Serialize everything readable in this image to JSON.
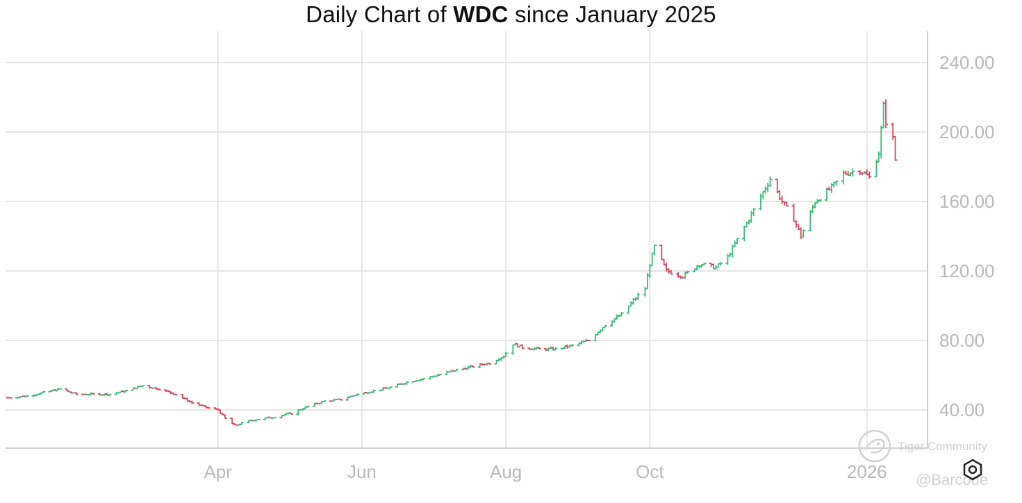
{
  "title": {
    "prefix": "Daily Chart of ",
    "symbol": "WDC",
    "suffix": " since January 2025"
  },
  "watermark": {
    "text": "Tiger Community",
    "handle": "@Barcode"
  },
  "colors": {
    "up": "#3cb878",
    "down": "#d6455a",
    "grid": "#e4e4e4",
    "axis": "#b8b8b8"
  },
  "icons": {
    "settings": "settings-gear-icon",
    "logo": "tiger-logo-icon"
  },
  "chart_data": {
    "type": "line",
    "style": "ohlc-bars",
    "title": "Daily Chart of WDC since January 2025",
    "xlabel": "",
    "ylabel": "",
    "ylim": [
      18,
      258
    ],
    "yticks": [
      "40.00",
      "80.00",
      "120.00",
      "160.00",
      "200.00",
      "240.00"
    ],
    "ytick_values": [
      40,
      80,
      120,
      160,
      200,
      240
    ],
    "xticks": [
      "Apr",
      "Jun",
      "Aug",
      "Oct",
      "2026"
    ],
    "xtick_dates": [
      "2025-04-01",
      "2025-06-01",
      "2025-08-01",
      "2025-10-01",
      "2026-01-01"
    ],
    "x_range": [
      "2025-01-01",
      "2026-01-14"
    ],
    "grid": true,
    "legend": "none",
    "y_axis_position": "right",
    "series": [
      {
        "values": [
          [
            "2025-01-02",
            47
          ],
          [
            "2025-01-10",
            48
          ],
          [
            "2025-01-17",
            50
          ],
          [
            "2025-01-24",
            52
          ],
          [
            "2025-01-31",
            49
          ],
          [
            "2025-02-07",
            49
          ],
          [
            "2025-02-14",
            49
          ],
          [
            "2025-02-21",
            51
          ],
          [
            "2025-02-28",
            54
          ],
          [
            "2025-03-07",
            52
          ],
          [
            "2025-03-14",
            49
          ],
          [
            "2025-03-21",
            44
          ],
          [
            "2025-03-28",
            41
          ],
          [
            "2025-04-01",
            40
          ],
          [
            "2025-04-04",
            35
          ],
          [
            "2025-04-08",
            31
          ],
          [
            "2025-04-15",
            34
          ],
          [
            "2025-04-25",
            36
          ],
          [
            "2025-05-02",
            38
          ],
          [
            "2025-05-09",
            42
          ],
          [
            "2025-05-16",
            45
          ],
          [
            "2025-05-23",
            46
          ],
          [
            "2025-05-30",
            49
          ],
          [
            "2025-06-06",
            51
          ],
          [
            "2025-06-13",
            53
          ],
          [
            "2025-06-20",
            56
          ],
          [
            "2025-06-27",
            58
          ],
          [
            "2025-07-03",
            60
          ],
          [
            "2025-07-11",
            63
          ],
          [
            "2025-07-18",
            65
          ],
          [
            "2025-07-25",
            67
          ],
          [
            "2025-07-31",
            71
          ],
          [
            "2025-08-04",
            78
          ],
          [
            "2025-08-08",
            76
          ],
          [
            "2025-08-15",
            75
          ],
          [
            "2025-08-22",
            75
          ],
          [
            "2025-08-29",
            77
          ],
          [
            "2025-09-05",
            80
          ],
          [
            "2025-09-12",
            89
          ],
          [
            "2025-09-19",
            95
          ],
          [
            "2025-09-24",
            103
          ],
          [
            "2025-09-29",
            110
          ],
          [
            "2025-10-01",
            124
          ],
          [
            "2025-10-03",
            134
          ],
          [
            "2025-10-08",
            120
          ],
          [
            "2025-10-15",
            117
          ],
          [
            "2025-10-22",
            124
          ],
          [
            "2025-10-29",
            122
          ],
          [
            "2025-11-03",
            128
          ],
          [
            "2025-11-07",
            138
          ],
          [
            "2025-11-12",
            150
          ],
          [
            "2025-11-17",
            163
          ],
          [
            "2025-11-21",
            173
          ],
          [
            "2025-11-26",
            160
          ],
          [
            "2025-12-01",
            150
          ],
          [
            "2025-12-04",
            140
          ],
          [
            "2025-12-10",
            160
          ],
          [
            "2025-12-17",
            168
          ],
          [
            "2025-12-22",
            176
          ],
          [
            "2025-12-29",
            178
          ],
          [
            "2026-01-02",
            174
          ],
          [
            "2026-01-06",
            188
          ],
          [
            "2026-01-08",
            215
          ],
          [
            "2026-01-09",
            206
          ],
          [
            "2026-01-12",
            196
          ],
          [
            "2026-01-13",
            184
          ]
        ]
      }
    ]
  }
}
